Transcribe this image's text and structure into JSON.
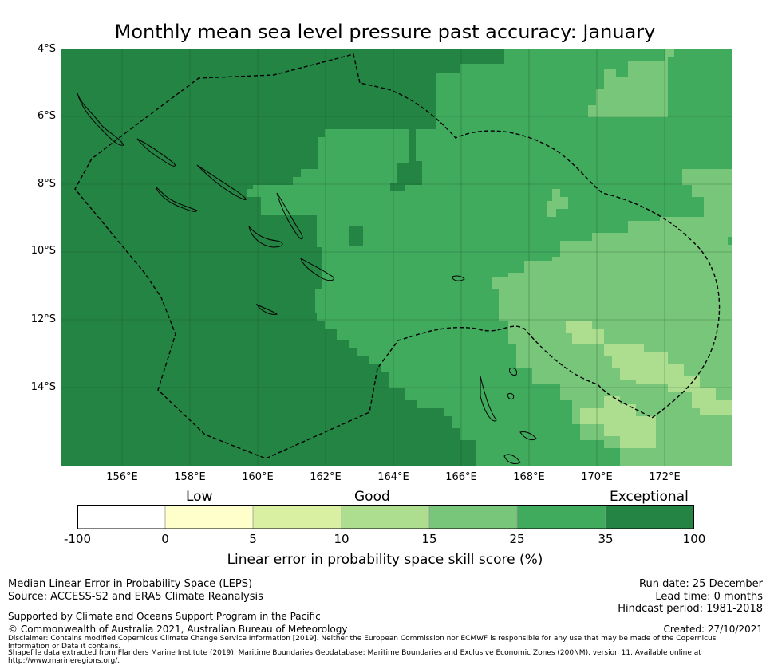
{
  "title": "Monthly mean sea level pressure past accuracy: January",
  "map": {
    "lat_labels": [
      "4°S",
      "6°S",
      "8°S",
      "10°S",
      "12°S",
      "14°S"
    ],
    "lon_labels": [
      "156°E",
      "158°E",
      "160°E",
      "162°E",
      "164°E",
      "166°E",
      "168°E",
      "170°E",
      "172°E"
    ],
    "lon_range": [
      154.2,
      174.0
    ],
    "lat_range": [
      -4.0,
      -16.3
    ]
  },
  "colorbar": {
    "categories": [
      "Low",
      "Good",
      "Exceptional"
    ],
    "ticks": [
      "-100",
      "0",
      "5",
      "10",
      "15",
      "25",
      "35",
      "100"
    ],
    "colors": [
      "#ffffff",
      "#ffffcc",
      "#d9f0a3",
      "#addd8e",
      "#78c679",
      "#41ab5d",
      "#238443"
    ],
    "label": "Linear error in probability space skill score (%)"
  },
  "footer": {
    "left1": "Median Linear Error in Probability Space (LEPS)",
    "left2": "Source: ACCESS-S2 and ERA5 Climate Reanalysis",
    "left3": "Supported by Climate and Oceans Support Program in the Pacific",
    "left4": "© Commonwealth of Australia 2021, Australian Bureau of Meteorology",
    "right1": "Run date: 25 December",
    "right2": "Lead time: 0 months",
    "right3": "Hindcast period: 1981-2018",
    "right4": "Created: 27/10/2021",
    "disclaimer1": "Disclaimer: Contains modified Copernicus Climate Change Service Information [2019]. Neither the European Commission nor ECMWF is responsible for any use that may be made of the Copernicus Information or Data it contains.",
    "disclaimer2": "Shapefile data extracted from Flanders Marine Institute (2019), Maritime Boundaries Geodatabase: Maritime Boundaries and Exclusive Economic Zones (200NM), version 11. Available online at http://www.marineregions.org/."
  }
}
